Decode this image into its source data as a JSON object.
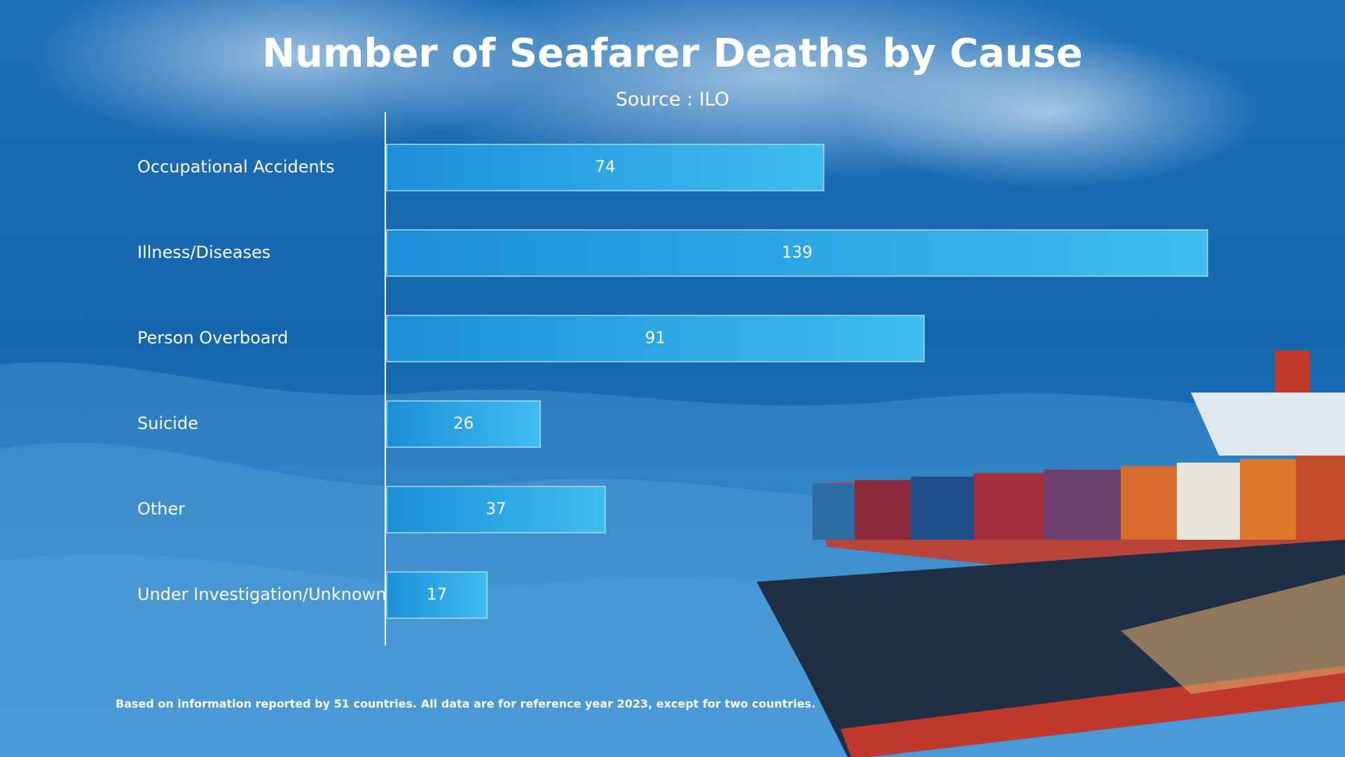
{
  "chart_data": {
    "type": "bar",
    "orientation": "horizontal",
    "title": "Number of Seafarer Deaths by Cause",
    "subtitle": "Source : ILO",
    "categories": [
      "Occupational Accidents",
      "Illness/Diseases",
      "Person Overboard",
      "Suicide",
      "Other",
      "Under Investigation/Unknown"
    ],
    "values": [
      74,
      139,
      91,
      26,
      37,
      17
    ],
    "color": "#2aa6e6",
    "footnote": "Based on information reported by 51 countries. All data are for reference year 2023, except for two countries."
  }
}
